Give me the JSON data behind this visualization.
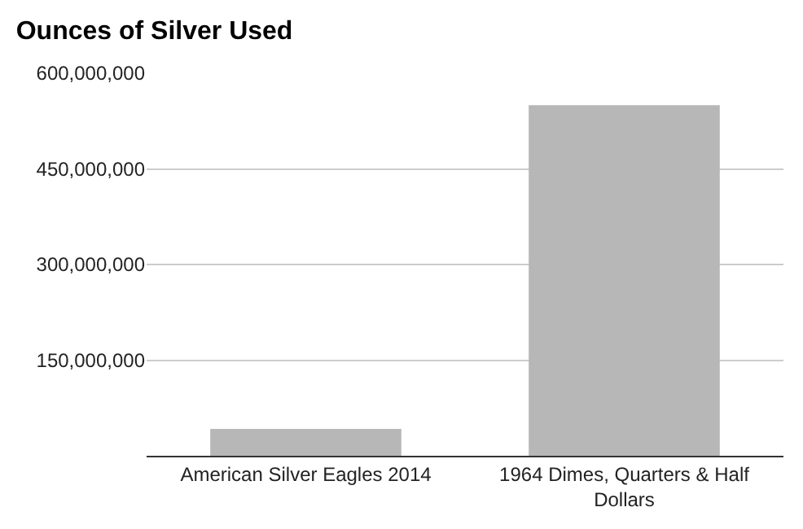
{
  "chart_data": {
    "type": "bar",
    "title": "Ounces of Silver Used",
    "categories": [
      "American Silver Eagles 2014",
      "1964 Dimes, Quarters & Half Dollars"
    ],
    "values": [
      42000000,
      550000000
    ],
    "color": "#b7b7b7",
    "ylim": [
      0,
      600000000
    ],
    "yticks": [
      {
        "value": 0,
        "label": null
      },
      {
        "value": 150000000,
        "label": "150,000,000"
      },
      {
        "value": 300000000,
        "label": "300,000,000"
      },
      {
        "value": 450000000,
        "label": "450,000,000"
      },
      {
        "value": 600000000,
        "label": "600,000,000"
      }
    ],
    "grid": "y",
    "legend": false
  }
}
